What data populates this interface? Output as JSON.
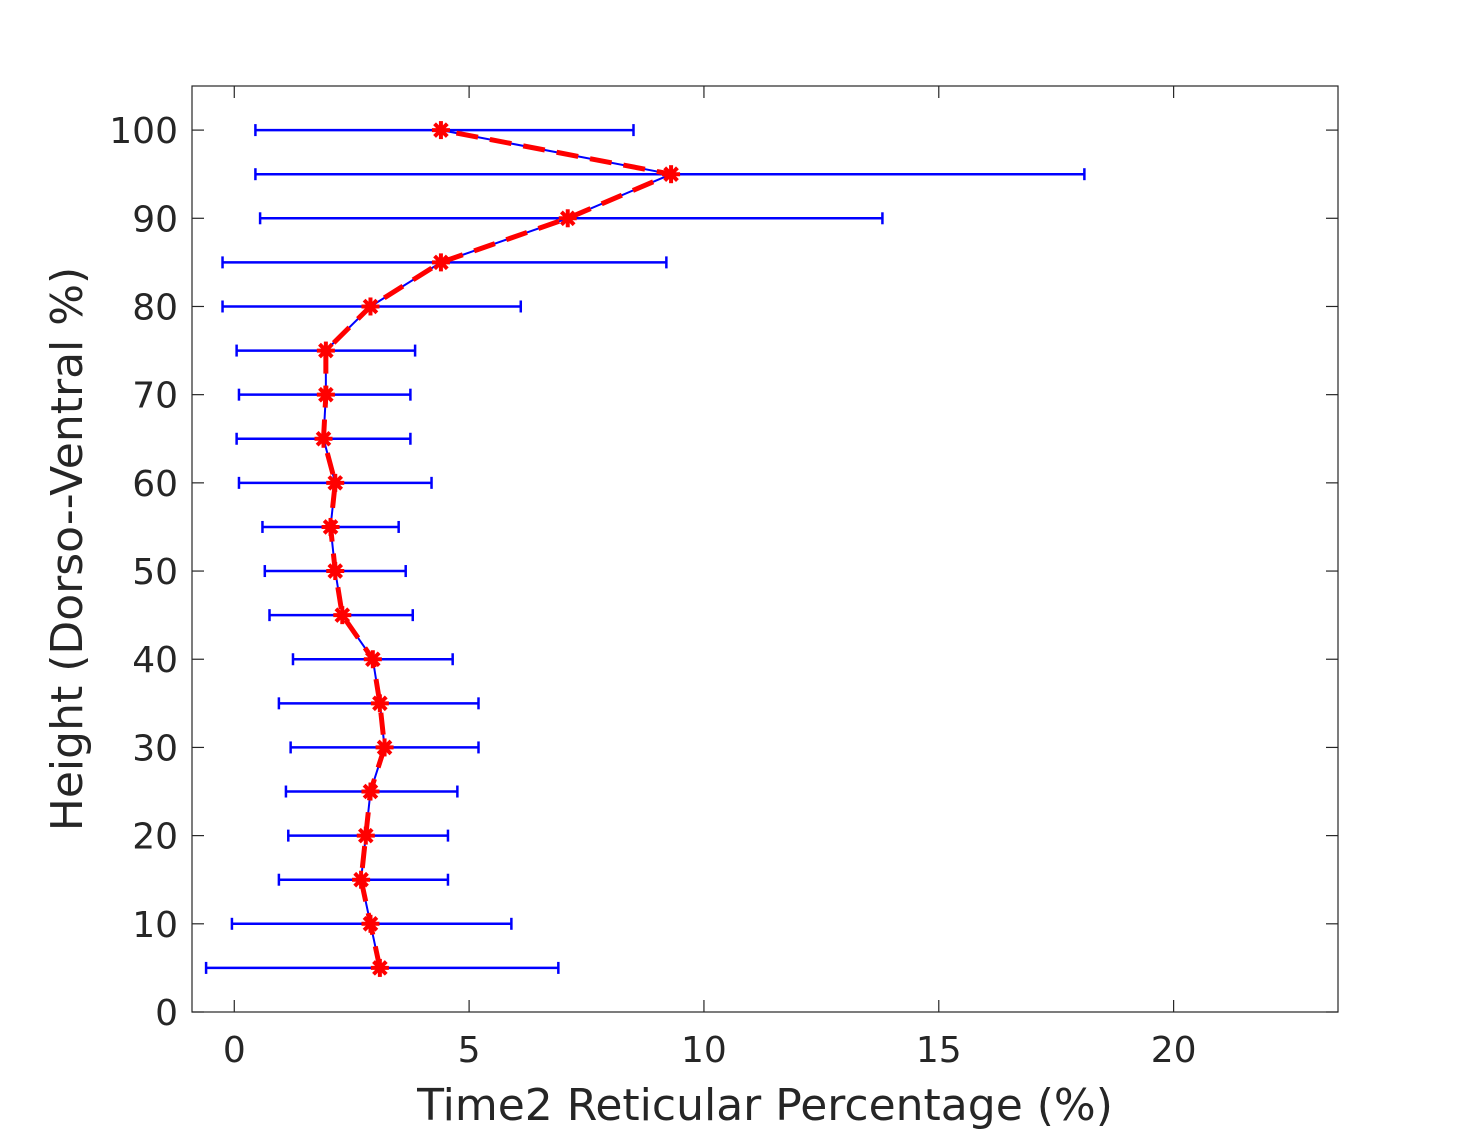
{
  "chart_data": {
    "type": "line",
    "title": "",
    "xlabel": "Time2 Reticular Percentage (%)",
    "ylabel": "Height (Dorso--Ventral %)",
    "xlim": [
      -0.9,
      23.5
    ],
    "ylim": [
      0,
      105
    ],
    "xticks": [
      0,
      5,
      10,
      15,
      20
    ],
    "yticks": [
      0,
      10,
      20,
      30,
      40,
      50,
      60,
      70,
      80,
      90,
      100
    ],
    "grid": false,
    "legend": "none",
    "series": [
      {
        "color": "#0000ff",
        "error_color": "#0000ff",
        "marker_color": "#ff0000",
        "line_style": "red dashed mean line with star markers over blue solid line",
        "points": [
          {
            "y": 5,
            "x": 3.1,
            "xerr_low": -0.6,
            "xerr_high": 6.9
          },
          {
            "y": 10,
            "x": 2.9,
            "xerr_low": -0.05,
            "xerr_high": 5.9
          },
          {
            "y": 15,
            "x": 2.7,
            "xerr_low": 0.95,
            "xerr_high": 4.55
          },
          {
            "y": 20,
            "x": 2.8,
            "xerr_low": 1.15,
            "xerr_high": 4.55
          },
          {
            "y": 25,
            "x": 2.9,
            "xerr_low": 1.1,
            "xerr_high": 4.75
          },
          {
            "y": 30,
            "x": 3.2,
            "xerr_low": 1.2,
            "xerr_high": 5.2
          },
          {
            "y": 35,
            "x": 3.1,
            "xerr_low": 0.95,
            "xerr_high": 5.2
          },
          {
            "y": 40,
            "x": 2.95,
            "xerr_low": 1.25,
            "xerr_high": 4.65
          },
          {
            "y": 45,
            "x": 2.3,
            "xerr_low": 0.75,
            "xerr_high": 3.8
          },
          {
            "y": 50,
            "x": 2.15,
            "xerr_low": 0.65,
            "xerr_high": 3.65
          },
          {
            "y": 55,
            "x": 2.05,
            "xerr_low": 0.6,
            "xerr_high": 3.5
          },
          {
            "y": 60,
            "x": 2.15,
            "xerr_low": 0.1,
            "xerr_high": 4.2
          },
          {
            "y": 65,
            "x": 1.9,
            "xerr_low": 0.05,
            "xerr_high": 3.75
          },
          {
            "y": 70,
            "x": 1.95,
            "xerr_low": 0.1,
            "xerr_high": 3.75
          },
          {
            "y": 75,
            "x": 1.95,
            "xerr_low": 0.05,
            "xerr_high": 3.85
          },
          {
            "y": 80,
            "x": 2.9,
            "xerr_low": -0.25,
            "xerr_high": 6.1
          },
          {
            "y": 85,
            "x": 4.4,
            "xerr_low": -0.25,
            "xerr_high": 9.2
          },
          {
            "y": 90,
            "x": 7.1,
            "xerr_low": 0.55,
            "xerr_high": 13.8
          },
          {
            "y": 95,
            "x": 9.3,
            "xerr_low": 0.45,
            "xerr_high": 18.1
          },
          {
            "y": 100,
            "x": 4.4,
            "xerr_low": 0.45,
            "xerr_high": 8.5
          }
        ]
      }
    ]
  }
}
